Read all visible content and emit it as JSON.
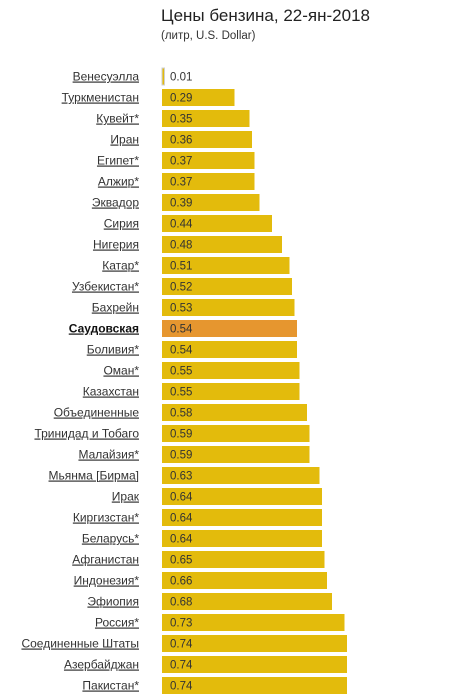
{
  "title": "Цены бензина, 22-ян-2018",
  "subtitle": "(литр, U.S. Dollar)",
  "colors": {
    "bar": "#e3bb0c",
    "bar_highlight": "#e6962f",
    "bar_border": "#cfcfcf"
  },
  "chart_data": {
    "type": "bar",
    "orientation": "horizontal",
    "title": "Цены бензина, 22-ян-2018",
    "subtitle": "(литр, U.S. Dollar)",
    "categories": [
      "Венесуэлла",
      "Туркменистан",
      "Кувейт*",
      "Иран",
      "Египет*",
      "Алжир*",
      "Эквадор",
      "Сирия",
      "Нигерия",
      "Катар*",
      "Узбекистан*",
      "Бахрейн",
      "Саудовская",
      "Боливия*",
      "Оман*",
      "Казахстан",
      "Объединенные",
      "Тринидад и Тобаго",
      "Малайзия*",
      "Мьянма [Бирма]",
      "Ирак",
      "Киргизстан*",
      "Беларусь*",
      "Афганистан",
      "Индонезия*",
      "Эфиопия",
      "Россия*",
      "Соединенные Штаты",
      "Азербайджан",
      "Пакистан*"
    ],
    "values": [
      0.01,
      0.29,
      0.35,
      0.36,
      0.37,
      0.37,
      0.39,
      0.44,
      0.48,
      0.51,
      0.52,
      0.53,
      0.54,
      0.54,
      0.55,
      0.55,
      0.58,
      0.59,
      0.59,
      0.63,
      0.64,
      0.64,
      0.64,
      0.65,
      0.66,
      0.68,
      0.73,
      0.74,
      0.74,
      0.74
    ],
    "value_labels": [
      "0.01",
      "0.29",
      "0.35",
      "0.36",
      "0.37",
      "0.37",
      "0.39",
      "0.44",
      "0.48",
      "0.51",
      "0.52",
      "0.53",
      "0.54",
      "0.54",
      "0.55",
      "0.55",
      "0.58",
      "0.59",
      "0.59",
      "0.63",
      "0.64",
      "0.64",
      "0.64",
      "0.65",
      "0.66",
      "0.68",
      "0.73",
      "0.74",
      "0.74",
      "0.74"
    ],
    "highlight_index": 12,
    "xlim": [
      0,
      0.74
    ],
    "grid": false,
    "legend": "none"
  }
}
